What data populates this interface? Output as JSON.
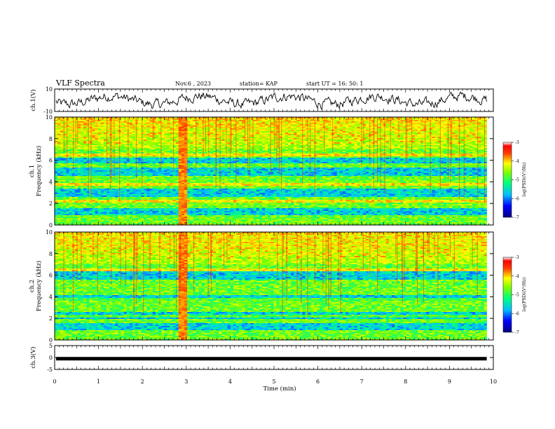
{
  "header": {
    "title": "VLF Spectra",
    "date": "Nov.6  , 2023",
    "station": "station= KAP",
    "start": "start  UT  =   16: 50: 1"
  },
  "chart_data": [
    {
      "type": "line",
      "name": "ch1-waveform",
      "ylabel": "ch.1(V)",
      "ylim": [
        -10,
        10
      ],
      "yticks": [
        "10",
        "-10"
      ]
    },
    {
      "type": "heatmap",
      "name": "ch1-spectrogram",
      "ylabel_top": "ch.1",
      "ylabel": "Frequency (kHz)",
      "ylim": [
        0,
        10
      ],
      "yticks": [
        "0",
        "2",
        "4",
        "6",
        "8",
        "10"
      ],
      "colorbar": {
        "label": "log(PSD)(V²/Hz)",
        "ticks": [
          "-3",
          "-4",
          "-5",
          "-6",
          "-7"
        ],
        "range": [
          -7,
          -3
        ]
      }
    },
    {
      "type": "heatmap",
      "name": "ch2-spectrogram",
      "ylabel_top": "ch.2",
      "ylabel": "Frequency (kHz)",
      "ylim": [
        0,
        10
      ],
      "yticks": [
        "0",
        "2",
        "4",
        "6",
        "8",
        "10"
      ],
      "colorbar": {
        "label": "log(PSD)(V²/Hz)",
        "ticks": [
          "-3",
          "-4",
          "-5",
          "-6",
          "-7"
        ],
        "range": [
          -7,
          -3
        ]
      }
    },
    {
      "type": "line",
      "name": "ch3-signal",
      "ylabel": "ch.3(V)",
      "ylim": [
        -5,
        5
      ],
      "yticks": [
        "5",
        "0",
        "-5"
      ],
      "value": -0.5
    }
  ],
  "xaxis": {
    "label": "Time  (min)",
    "ticks": [
      "0",
      "1",
      "2",
      "3",
      "4",
      "5",
      "6",
      "7",
      "8",
      "9",
      "10"
    ],
    "xlim": [
      0,
      10
    ],
    "data_end": 9.85
  },
  "colors": {
    "colormap": [
      "#00008b",
      "#0000ff",
      "#00bfff",
      "#00ff80",
      "#7fff00",
      "#ffff00",
      "#ff8000",
      "#ff0000",
      "#ffffff"
    ]
  }
}
